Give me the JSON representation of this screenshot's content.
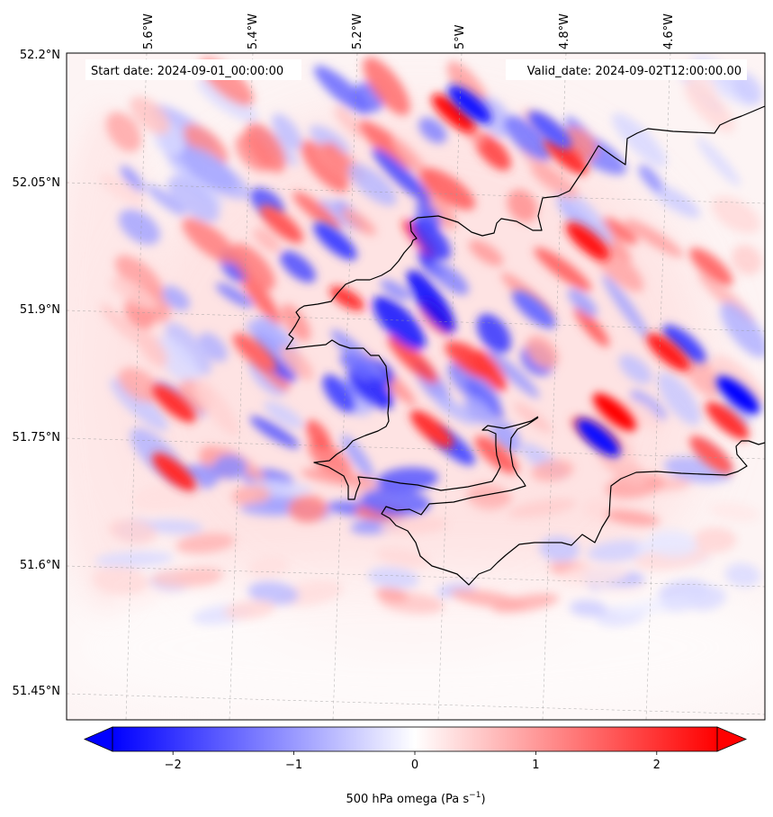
{
  "chart_data": {
    "type": "heatmap",
    "title": "",
    "start_date": "Start date: 2024-09-01_00:00:00",
    "valid_date": "Valid_date: 2024-09-02T12:00:00.00",
    "lon_ticks": [
      "5.6°W",
      "5.4°W",
      "5.2°W",
      "5°W",
      "4.8°W",
      "4.6°W"
    ],
    "lat_ticks": [
      "52.2°N",
      "52.05°N",
      "51.9°N",
      "51.75°N",
      "51.6°N",
      "51.45°N"
    ],
    "lon_range": [
      -5.75,
      -4.45
    ],
    "lat_range": [
      51.42,
      52.2
    ],
    "colorbar": {
      "label": "500 hPa omega (Pa s",
      "label_exp": "−1",
      "label_close": ")",
      "ticks": [
        -2,
        -1,
        0,
        1,
        2
      ],
      "tick_labels": [
        "−2",
        "−1",
        "0",
        "1",
        "2"
      ],
      "range": [
        -2.5,
        2.5
      ],
      "extend": "both",
      "colormap": "bwr",
      "colors": [
        "#0000ff",
        "#ffffff",
        "#ff0000"
      ]
    },
    "coastline_color": "#000000",
    "grid": true,
    "grid_style": "dashed",
    "field": {
      "units": "Pa s-1",
      "blobs": [
        {
          "lon": -5.03,
          "lat": 52.13,
          "value": 2.4
        },
        {
          "lon": -5.0,
          "lat": 52.14,
          "value": -2.3
        },
        {
          "lon": -4.82,
          "lat": 52.08,
          "value": 2.0
        },
        {
          "lon": -4.85,
          "lat": 52.11,
          "value": -1.6
        },
        {
          "lon": -4.78,
          "lat": 51.98,
          "value": 2.3
        },
        {
          "lon": -4.73,
          "lat": 51.78,
          "value": 2.5
        },
        {
          "lon": -4.76,
          "lat": 51.75,
          "value": -2.4
        },
        {
          "lon": -4.5,
          "lat": 51.8,
          "value": -2.5
        },
        {
          "lon": -4.52,
          "lat": 51.77,
          "value": 2.0
        },
        {
          "lon": -4.6,
          "lat": 51.86,
          "value": -1.8
        },
        {
          "lon": -4.63,
          "lat": 51.85,
          "value": 2.2
        },
        {
          "lon": -5.25,
          "lat": 51.98,
          "value": -1.8
        },
        {
          "lon": -5.35,
          "lat": 52.0,
          "value": 1.6
        },
        {
          "lon": -5.55,
          "lat": 51.79,
          "value": 2.0
        },
        {
          "lon": -5.55,
          "lat": 51.71,
          "value": 2.1
        },
        {
          "lon": -5.03,
          "lat": 51.74,
          "value": -1.7
        },
        {
          "lon": -5.07,
          "lat": 51.76,
          "value": 2.0
        },
        {
          "lon": -4.95,
          "lat": 51.73,
          "value": 1.5
        },
        {
          "lon": -4.88,
          "lat": 51.9,
          "value": -1.4
        },
        {
          "lon": -5.4,
          "lat": 51.85,
          "value": 1.5
        },
        {
          "lon": -4.55,
          "lat": 51.73,
          "value": 1.6
        },
        {
          "lon": -4.55,
          "lat": 51.95,
          "value": 1.4
        }
      ]
    }
  }
}
